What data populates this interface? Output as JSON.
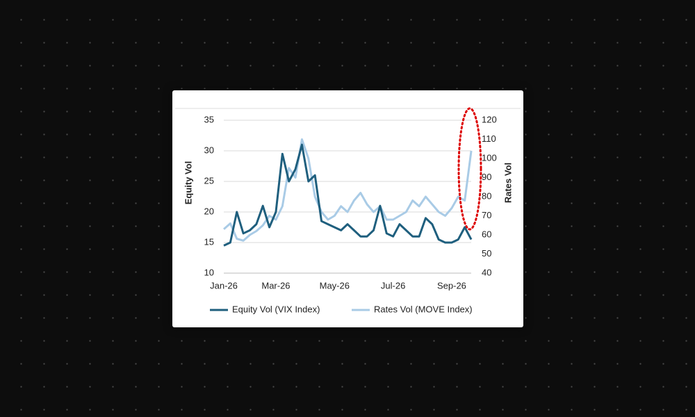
{
  "chart_data": {
    "type": "line",
    "y_label": "Equity Vol",
    "y2_label": "Rates Vol",
    "categories": [
      "Jan-26",
      null,
      null,
      null,
      null,
      null,
      null,
      null,
      "Mar-26",
      null,
      null,
      null,
      null,
      null,
      null,
      null,
      null,
      "May-26",
      null,
      null,
      null,
      null,
      null,
      null,
      null,
      null,
      "Jul-26",
      null,
      null,
      null,
      null,
      null,
      null,
      null,
      null,
      "Sep-26",
      null,
      null,
      null
    ],
    "series": [
      {
        "name": "Equity Vol (VIX Index)",
        "color": "#1f5f7e",
        "values": [
          14.5,
          15,
          20,
          16.5,
          17,
          18,
          21,
          17.5,
          20,
          29.5,
          25,
          27,
          31,
          25,
          26,
          18.5,
          18,
          17.5,
          17,
          18,
          17,
          16,
          16,
          17,
          21,
          16.5,
          16,
          18,
          17,
          16,
          16,
          19,
          18,
          15.5,
          15,
          15,
          15.5,
          17.5,
          15.5
        ]
      },
      {
        "name": "Rates Vol (MOVE Index)",
        "color": "#a9cbe6",
        "axis": "y2",
        "values": [
          63,
          66,
          58,
          57,
          60,
          62,
          65,
          70,
          68,
          75,
          95,
          90,
          110,
          100,
          80,
          72,
          68,
          70,
          75,
          72,
          78,
          82,
          76,
          72,
          75,
          68,
          68,
          70,
          72,
          78,
          75,
          80,
          76,
          72,
          70,
          74,
          80,
          78,
          104
        ]
      }
    ],
    "ylim": [
      10,
      35
    ],
    "yticks": [
      10,
      15,
      20,
      25,
      30,
      35
    ],
    "y2lim": [
      40,
      120
    ],
    "y2ticks": [
      40,
      50,
      60,
      70,
      80,
      90,
      100,
      110,
      120
    ],
    "grid": true
  }
}
